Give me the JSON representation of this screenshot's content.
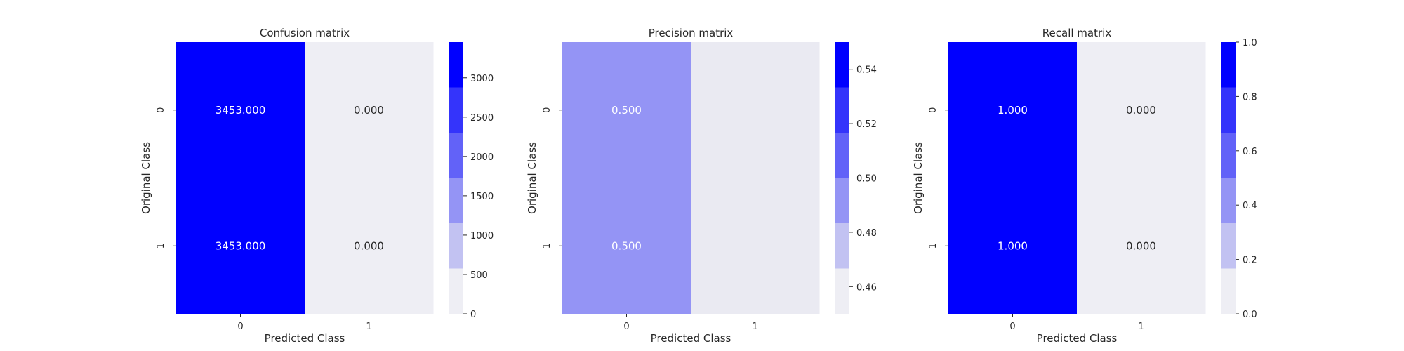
{
  "chart_data": [
    {
      "type": "heatmap",
      "title": "Confusion matrix",
      "xlabel": "Predicted Class",
      "ylabel": "Original Class",
      "x_categories": [
        "0",
        "1"
      ],
      "y_categories": [
        "0",
        "1"
      ],
      "values": [
        [
          3453.0,
          0.0
        ],
        [
          3453.0,
          0.0
        ]
      ],
      "cell_labels": [
        [
          "3453.000",
          "0.000"
        ],
        [
          "3453.000",
          "0.000"
        ]
      ],
      "colorbar": {
        "range": [
          0,
          3453
        ],
        "ticks": [
          0,
          500,
          1000,
          1500,
          2000,
          2500,
          3000
        ],
        "tick_labels": [
          "0",
          "500",
          "1000",
          "1500",
          "2000",
          "2500",
          "3000"
        ],
        "levels": [
          "#eeeef4",
          "#c2c2f2",
          "#9494f5",
          "#6262f8",
          "#3434fb",
          "#0000ff"
        ]
      }
    },
    {
      "type": "heatmap",
      "title": "Precision matrix",
      "xlabel": "Predicted Class",
      "ylabel": "Original Class",
      "x_categories": [
        "0",
        "1"
      ],
      "y_categories": [
        "0",
        "1"
      ],
      "values": [
        [
          0.5,
          null
        ],
        [
          0.5,
          null
        ]
      ],
      "cell_labels": [
        [
          "0.500",
          ""
        ],
        [
          "0.500",
          ""
        ]
      ],
      "colorbar": {
        "range": [
          0.45,
          0.55
        ],
        "ticks": [
          0.46,
          0.48,
          0.5,
          0.52,
          0.54
        ],
        "tick_labels": [
          "0.46",
          "0.48",
          "0.50",
          "0.52",
          "0.54"
        ],
        "levels": [
          "#eeeef4",
          "#c2c2f2",
          "#9494f5",
          "#6262f8",
          "#3434fb",
          "#0000ff"
        ]
      },
      "missing_color": "#eaeaf2"
    },
    {
      "type": "heatmap",
      "title": "Recall matrix",
      "xlabel": "Predicted Class",
      "ylabel": "Original Class",
      "x_categories": [
        "0",
        "1"
      ],
      "y_categories": [
        "0",
        "1"
      ],
      "values": [
        [
          1.0,
          0.0
        ],
        [
          1.0,
          0.0
        ]
      ],
      "cell_labels": [
        [
          "1.000",
          "0.000"
        ],
        [
          "1.000",
          "0.000"
        ]
      ],
      "colorbar": {
        "range": [
          0,
          1
        ],
        "ticks": [
          0,
          0.2,
          0.4,
          0.6,
          0.8,
          1.0
        ],
        "tick_labels": [
          "0.0",
          "0.2",
          "0.4",
          "0.6",
          "0.8",
          "1.0"
        ],
        "levels": [
          "#eeeef4",
          "#c2c2f2",
          "#9494f5",
          "#6262f8",
          "#3434fb",
          "#0000ff"
        ]
      }
    }
  ],
  "colors": {
    "text_dark": "#262626",
    "text_light": "#ffffff",
    "tick": "#262626"
  }
}
